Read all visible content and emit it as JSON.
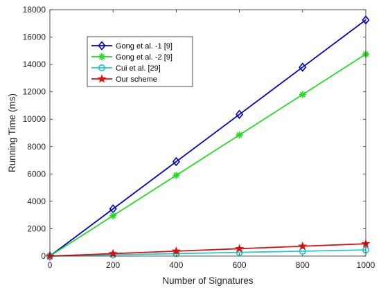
{
  "chart_data": {
    "type": "line",
    "xlabel": "Number of Signatures",
    "ylabel": "Running Time (ms)",
    "xlim": [
      0,
      1000
    ],
    "ylim": [
      0,
      18000
    ],
    "xticks": [
      0,
      200,
      400,
      600,
      800,
      1000
    ],
    "yticks": [
      0,
      2000,
      4000,
      6000,
      8000,
      10000,
      12000,
      14000,
      16000,
      18000
    ],
    "x": [
      0,
      200,
      400,
      600,
      800,
      1000
    ],
    "grid": false,
    "legend_position": "top-left",
    "series": [
      {
        "name": "Gong et al. -1 [9]",
        "color": "#0000cc",
        "marker": "diamond",
        "values": [
          0,
          3450,
          6900,
          10350,
          13800,
          17250
        ]
      },
      {
        "name": "Gong et al. -2 [9]",
        "color": "#22dd22",
        "marker": "asterisk",
        "values": [
          0,
          2950,
          5900,
          8850,
          11800,
          14750
        ]
      },
      {
        "name": "Cui et al. [29]",
        "color": "#22cccc",
        "marker": "circle",
        "values": [
          0,
          90,
          180,
          270,
          360,
          450
        ]
      },
      {
        "name": "Our scheme",
        "color": "#dd1111",
        "marker": "pentagram",
        "values": [
          0,
          180,
          360,
          540,
          720,
          900
        ]
      }
    ]
  }
}
